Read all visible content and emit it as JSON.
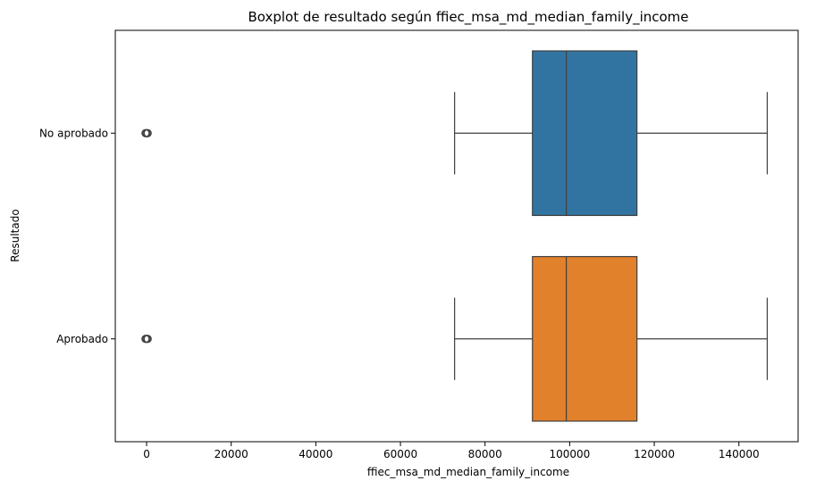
{
  "chart_data": {
    "type": "boxplot",
    "orientation": "horizontal",
    "title": "Boxplot de resultado según ffiec_msa_md_median_family_income",
    "xlabel": "ffiec_msa_md_median_family_income",
    "ylabel": "Resultado",
    "xlim": [
      -7400,
      154000
    ],
    "xticks": [
      0,
      20000,
      40000,
      60000,
      80000,
      100000,
      120000,
      140000
    ],
    "xtick_labels": [
      "0",
      "20000",
      "40000",
      "60000",
      "80000",
      "100000",
      "120000",
      "140000"
    ],
    "grid": false,
    "legend": "none",
    "categories": [
      "No aprobado",
      "Aprobado"
    ],
    "series": [
      {
        "category": "No aprobado",
        "color": "#3274a1",
        "whisker_low": 72800,
        "q1": 91200,
        "median": 99200,
        "q3": 115900,
        "whisker_high": 146700,
        "outliers": [
          0
        ]
      },
      {
        "category": "Aprobado",
        "color": "#e1812c",
        "whisker_low": 72800,
        "q1": 91200,
        "median": 99200,
        "q3": 115900,
        "whisker_high": 146700,
        "outliers": [
          0
        ]
      }
    ]
  }
}
